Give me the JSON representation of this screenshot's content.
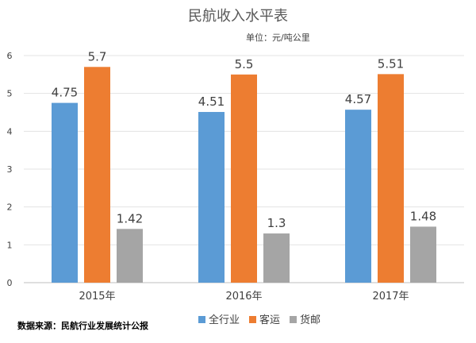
{
  "chart_data": {
    "type": "bar",
    "title": "民航收入水平表",
    "unit_note": "单位：元/吨公里",
    "categories": [
      "2015年",
      "2016年",
      "2017年"
    ],
    "series": [
      {
        "name": "全行业",
        "values": [
          4.75,
          4.51,
          4.57
        ],
        "labels": [
          "4.75",
          "4.51",
          "4.57"
        ],
        "color": "#5b9bd5"
      },
      {
        "name": "客运",
        "values": [
          5.7,
          5.5,
          5.51
        ],
        "labels": [
          "5.7",
          "5.5",
          "5.51"
        ],
        "color": "#ed7d31"
      },
      {
        "name": "货邮",
        "values": [
          1.42,
          1.3,
          1.48
        ],
        "labels": [
          "1.42",
          "1.3",
          "1.48"
        ],
        "color": "#a5a5a5"
      }
    ],
    "y_ticks": [
      "0",
      "1",
      "2",
      "3",
      "4",
      "5",
      "6"
    ],
    "ylim": [
      0,
      6
    ],
    "grid": true,
    "legend_position": "bottom",
    "source": "数据来源：民航行业发展统计公报"
  }
}
